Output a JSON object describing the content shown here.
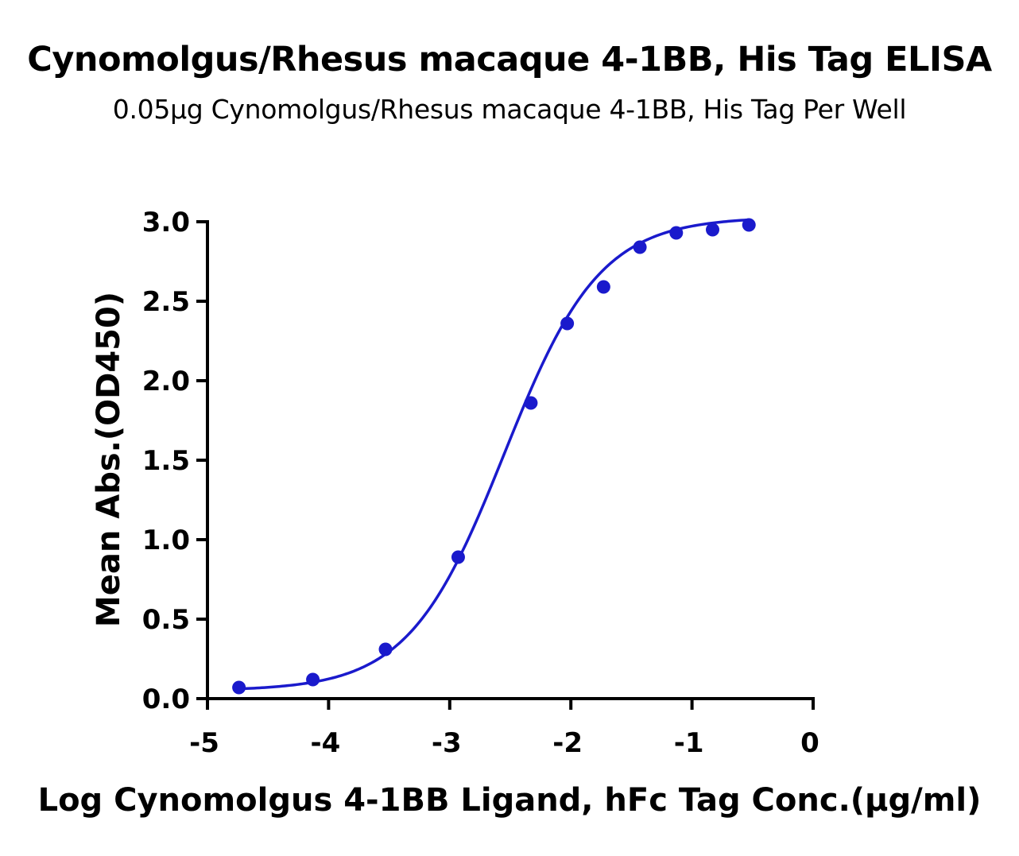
{
  "chart_data": {
    "type": "scatter",
    "title": "Cynomolgus/Rhesus macaque 4-1BB, His Tag ELISA",
    "subtitle": "0.05μg Cynomolgus/Rhesus macaque 4-1BB, His Tag Per Well",
    "xlabel": "Log Cynomolgus 4-1BB Ligand, hFc Tag Conc.(μg/ml)",
    "ylabel": "Mean Abs.(OD450)",
    "xlim": [
      -5,
      0
    ],
    "ylim": [
      0,
      3
    ],
    "x_ticks": [
      "-5",
      "-4",
      "-3",
      "-2",
      "-1",
      "0"
    ],
    "y_ticks": [
      "0.0",
      "0.5",
      "1.0",
      "1.5",
      "2.0",
      "2.5",
      "3.0"
    ],
    "grid": false,
    "series": [
      {
        "color": "#1a1acc",
        "points": [
          {
            "x": -4.74,
            "y": 0.07
          },
          {
            "x": -4.13,
            "y": 0.12
          },
          {
            "x": -3.53,
            "y": 0.31
          },
          {
            "x": -2.93,
            "y": 0.89
          },
          {
            "x": -2.33,
            "y": 1.86
          },
          {
            "x": -2.03,
            "y": 2.36
          },
          {
            "x": -1.73,
            "y": 2.59
          },
          {
            "x": -1.43,
            "y": 2.84
          },
          {
            "x": -1.13,
            "y": 2.93
          },
          {
            "x": -0.83,
            "y": 2.95
          },
          {
            "x": -0.53,
            "y": 2.98
          }
        ],
        "fit": {
          "model": "4PL",
          "bottom": 0.05,
          "top": 3.03,
          "logEC50": -2.55,
          "hill": 1.1
        }
      }
    ]
  }
}
